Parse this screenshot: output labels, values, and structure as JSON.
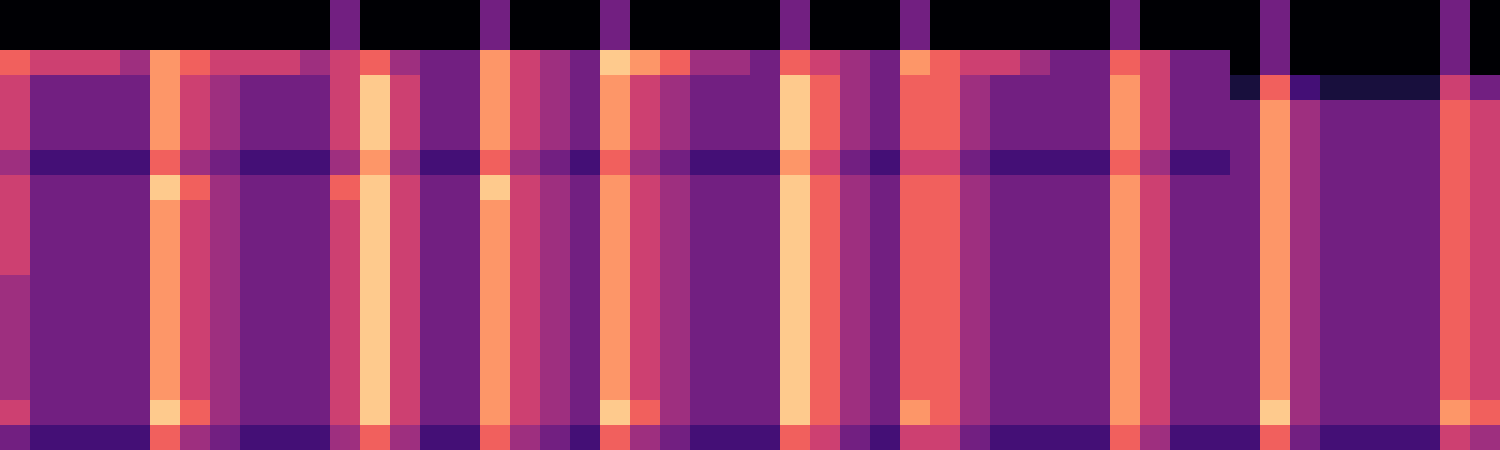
{
  "chart_data": {
    "type": "heatmap",
    "xlim": [
      0,
      50
    ],
    "ylim": [
      0,
      18
    ],
    "zlim": [
      0,
      9
    ],
    "tick_labels": false,
    "values": [
      [
        0,
        0,
        6,
        5,
        5,
        5,
        4,
        5,
        5,
        5,
        5,
        4,
        4,
        4,
        4,
        4,
        5,
        3
      ],
      [
        0,
        0,
        5,
        3,
        3,
        3,
        2,
        3,
        3,
        3,
        3,
        3,
        3,
        3,
        3,
        3,
        3,
        2
      ],
      [
        0,
        0,
        5,
        3,
        3,
        3,
        2,
        3,
        3,
        3,
        3,
        3,
        3,
        3,
        3,
        3,
        3,
        2
      ],
      [
        0,
        0,
        5,
        3,
        3,
        3,
        2,
        3,
        3,
        3,
        3,
        3,
        3,
        3,
        3,
        3,
        3,
        2
      ],
      [
        0,
        0,
        4,
        3,
        3,
        3,
        2,
        3,
        3,
        3,
        3,
        3,
        3,
        3,
        3,
        3,
        3,
        2
      ],
      [
        0,
        0,
        7,
        7,
        7,
        7,
        6,
        8,
        7,
        7,
        7,
        7,
        7,
        7,
        7,
        7,
        8,
        6
      ],
      [
        0,
        0,
        6,
        5,
        5,
        5,
        4,
        6,
        5,
        5,
        5,
        5,
        5,
        5,
        5,
        5,
        6,
        4
      ],
      [
        0,
        0,
        5,
        4,
        4,
        4,
        3,
        4,
        4,
        4,
        4,
        4,
        4,
        4,
        4,
        4,
        4,
        3
      ],
      [
        0,
        0,
        5,
        3,
        3,
        3,
        2,
        3,
        3,
        3,
        3,
        3,
        3,
        3,
        3,
        3,
        3,
        2
      ],
      [
        0,
        0,
        5,
        3,
        3,
        3,
        2,
        3,
        3,
        3,
        3,
        3,
        3,
        3,
        3,
        3,
        3,
        2
      ],
      [
        0,
        0,
        4,
        3,
        3,
        3,
        2,
        3,
        3,
        3,
        3,
        3,
        3,
        3,
        3,
        3,
        3,
        2
      ],
      [
        3,
        3,
        5,
        5,
        5,
        5,
        4,
        6,
        5,
        5,
        5,
        5,
        5,
        5,
        5,
        5,
        5,
        4
      ],
      [
        0,
        0,
        6,
        8,
        8,
        8,
        7,
        8,
        8,
        8,
        8,
        8,
        8,
        8,
        8,
        8,
        8,
        6
      ],
      [
        0,
        0,
        4,
        5,
        5,
        5,
        4,
        5,
        5,
        5,
        5,
        5,
        5,
        5,
        5,
        5,
        5,
        4
      ],
      [
        0,
        0,
        3,
        3,
        3,
        3,
        2,
        3,
        3,
        3,
        3,
        3,
        3,
        3,
        3,
        3,
        3,
        2
      ],
      [
        0,
        0,
        3,
        3,
        3,
        3,
        2,
        3,
        3,
        3,
        3,
        3,
        3,
        3,
        3,
        3,
        3,
        2
      ],
      [
        3,
        3,
        7,
        7,
        7,
        7,
        6,
        8,
        7,
        7,
        7,
        7,
        7,
        7,
        7,
        7,
        7,
        6
      ],
      [
        0,
        0,
        5,
        5,
        5,
        5,
        4,
        5,
        5,
        5,
        5,
        5,
        5,
        5,
        5,
        5,
        5,
        4
      ],
      [
        0,
        0,
        4,
        4,
        4,
        4,
        3,
        4,
        4,
        4,
        4,
        4,
        4,
        4,
        4,
        4,
        4,
        3
      ],
      [
        0,
        0,
        3,
        3,
        3,
        3,
        2,
        3,
        3,
        3,
        3,
        3,
        3,
        3,
        3,
        3,
        3,
        2
      ],
      [
        3,
        3,
        8,
        7,
        7,
        7,
        6,
        7,
        7,
        7,
        7,
        7,
        7,
        7,
        7,
        7,
        8,
        6
      ],
      [
        0,
        0,
        7,
        5,
        5,
        5,
        4,
        5,
        5,
        5,
        5,
        5,
        5,
        5,
        5,
        5,
        6,
        4
      ],
      [
        0,
        0,
        6,
        4,
        4,
        4,
        3,
        4,
        4,
        4,
        4,
        4,
        4,
        4,
        4,
        4,
        4,
        3
      ],
      [
        0,
        0,
        4,
        3,
        3,
        3,
        2,
        3,
        3,
        3,
        3,
        3,
        3,
        3,
        3,
        3,
        3,
        2
      ],
      [
        0,
        0,
        4,
        3,
        3,
        3,
        2,
        3,
        3,
        3,
        3,
        3,
        3,
        3,
        3,
        3,
        3,
        2
      ],
      [
        0,
        0,
        3,
        3,
        3,
        3,
        2,
        3,
        3,
        3,
        3,
        3,
        3,
        3,
        3,
        3,
        3,
        2
      ],
      [
        3,
        3,
        6,
        8,
        8,
        8,
        7,
        8,
        8,
        8,
        8,
        8,
        8,
        8,
        8,
        8,
        8,
        6
      ],
      [
        0,
        0,
        5,
        6,
        6,
        6,
        5,
        6,
        6,
        6,
        6,
        6,
        6,
        6,
        6,
        6,
        6,
        5
      ],
      [
        0,
        0,
        4,
        4,
        4,
        4,
        3,
        4,
        4,
        4,
        4,
        4,
        4,
        4,
        4,
        4,
        4,
        3
      ],
      [
        0,
        0,
        3,
        3,
        3,
        3,
        2,
        3,
        3,
        3,
        3,
        3,
        3,
        3,
        3,
        3,
        3,
        2
      ],
      [
        3,
        3,
        7,
        6,
        6,
        6,
        5,
        6,
        6,
        6,
        6,
        6,
        6,
        6,
        6,
        6,
        7,
        5
      ],
      [
        0,
        0,
        6,
        6,
        6,
        6,
        5,
        6,
        6,
        6,
        6,
        6,
        6,
        6,
        6,
        6,
        6,
        5
      ],
      [
        0,
        0,
        5,
        4,
        4,
        4,
        3,
        4,
        4,
        4,
        4,
        4,
        4,
        4,
        4,
        4,
        4,
        3
      ],
      [
        0,
        0,
        5,
        3,
        3,
        3,
        2,
        3,
        3,
        3,
        3,
        3,
        3,
        3,
        3,
        3,
        3,
        2
      ],
      [
        0,
        0,
        4,
        3,
        3,
        3,
        2,
        3,
        3,
        3,
        3,
        3,
        3,
        3,
        3,
        3,
        3,
        2
      ],
      [
        0,
        0,
        3,
        3,
        3,
        3,
        2,
        3,
        3,
        3,
        3,
        3,
        3,
        3,
        3,
        3,
        3,
        2
      ],
      [
        0,
        0,
        3,
        3,
        3,
        3,
        2,
        3,
        3,
        3,
        3,
        3,
        3,
        3,
        3,
        3,
        3,
        2
      ],
      [
        3,
        3,
        6,
        7,
        7,
        7,
        6,
        7,
        7,
        7,
        7,
        7,
        7,
        7,
        7,
        7,
        7,
        6
      ],
      [
        0,
        0,
        5,
        5,
        5,
        5,
        4,
        5,
        5,
        5,
        5,
        5,
        5,
        5,
        5,
        5,
        5,
        4
      ],
      [
        0,
        0,
        3,
        3,
        3,
        3,
        2,
        3,
        3,
        3,
        3,
        3,
        3,
        3,
        3,
        3,
        3,
        2
      ],
      [
        0,
        0,
        3,
        3,
        3,
        3,
        2,
        3,
        3,
        3,
        3,
        3,
        3,
        3,
        3,
        3,
        3,
        2
      ],
      [
        0,
        0,
        0,
        1,
        3,
        3,
        3,
        3,
        3,
        3,
        3,
        3,
        3,
        3,
        3,
        3,
        3,
        2
      ],
      [
        3,
        3,
        3,
        6,
        7,
        7,
        7,
        7,
        7,
        7,
        7,
        7,
        7,
        7,
        7,
        7,
        8,
        6
      ],
      [
        0,
        0,
        0,
        2,
        4,
        4,
        4,
        4,
        4,
        4,
        4,
        4,
        4,
        4,
        4,
        4,
        4,
        3
      ],
      [
        0,
        0,
        0,
        1,
        3,
        3,
        3,
        3,
        3,
        3,
        3,
        3,
        3,
        3,
        3,
        3,
        3,
        2
      ],
      [
        0,
        0,
        0,
        1,
        3,
        3,
        3,
        3,
        3,
        3,
        3,
        3,
        3,
        3,
        3,
        3,
        3,
        2
      ],
      [
        0,
        0,
        0,
        1,
        3,
        3,
        3,
        3,
        3,
        3,
        3,
        3,
        3,
        3,
        3,
        3,
        3,
        2
      ],
      [
        0,
        0,
        0,
        1,
        3,
        3,
        3,
        3,
        3,
        3,
        3,
        3,
        3,
        3,
        3,
        3,
        3,
        2
      ],
      [
        3,
        3,
        3,
        5,
        6,
        6,
        6,
        6,
        6,
        6,
        6,
        6,
        6,
        6,
        6,
        6,
        7,
        5
      ],
      [
        0,
        0,
        0,
        3,
        5,
        5,
        5,
        5,
        5,
        5,
        5,
        5,
        5,
        5,
        5,
        5,
        6,
        4
      ]
    ]
  }
}
